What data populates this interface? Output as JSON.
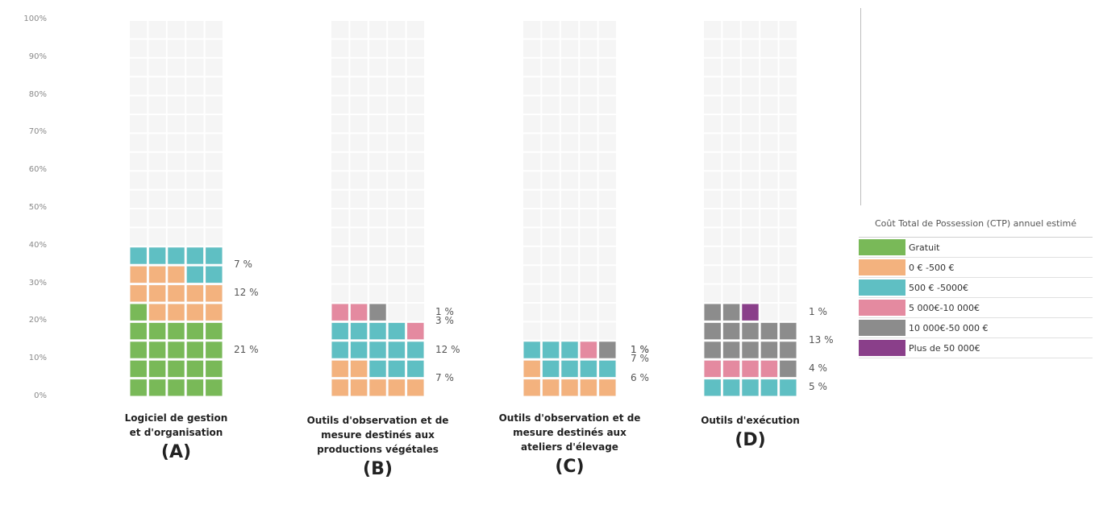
{
  "chart_data": {
    "type": "waffle",
    "y_ticks": [
      "100%",
      "90%",
      "80%",
      "70%",
      "60%",
      "50%",
      "40%",
      "30%",
      "20%",
      "10%",
      "0%"
    ],
    "ylim": [
      0,
      100
    ],
    "legend_title": "Coût Total de Possession (CTP) annuel estimé",
    "legend": [
      {
        "key": "gratuit",
        "label": "Gratuit",
        "color": "#79b958"
      },
      {
        "key": "c0_500",
        "label": "0 € -500 €",
        "color": "#f3b27e"
      },
      {
        "key": "c500_5000",
        "label": "500 € -5000€",
        "color": "#5fbfc3"
      },
      {
        "key": "c5000_10000",
        "label": "5 000€-10 000€",
        "color": "#e48aa0"
      },
      {
        "key": "c10000_50000",
        "label": "10 000€-50 000 €",
        "color": "#8c8c8c"
      },
      {
        "key": "plus_50000",
        "label": "Plus de 50 000€",
        "color": "#8a3f8a"
      }
    ],
    "categories": [
      {
        "label_lines": [
          "Logiciel de gestion",
          "et d'organisation"
        ],
        "letter": "(A)",
        "series": [
          {
            "key": "gratuit",
            "value": 21,
            "label": "21 %"
          },
          {
            "key": "c0_500",
            "value": 12,
            "label": "12 %"
          },
          {
            "key": "c500_5000",
            "value": 7,
            "label": "7 %"
          }
        ]
      },
      {
        "label_lines": [
          "Outils d'observation et de",
          "mesure destinés aux",
          "productions végétales"
        ],
        "letter": "(B)",
        "series": [
          {
            "key": "c0_500",
            "value": 7,
            "label": "7 %"
          },
          {
            "key": "c500_5000",
            "value": 12,
            "label": "12 %"
          },
          {
            "key": "c5000_10000",
            "value": 3,
            "label": "3 %"
          },
          {
            "key": "c10000_50000",
            "value": 1,
            "label": "1 %"
          }
        ]
      },
      {
        "label_lines": [
          "Outils d'observation et de",
          "mesure destinés aux",
          "ateliers d'élevage"
        ],
        "letter": "(C)",
        "series": [
          {
            "key": "c0_500",
            "value": 6,
            "label": "6 %"
          },
          {
            "key": "c500_5000",
            "value": 7,
            "label": "7 %"
          },
          {
            "key": "c5000_10000",
            "value": 1,
            "label": "1 %"
          },
          {
            "key": "c10000_50000",
            "value": 1,
            "label": "1 %"
          }
        ]
      },
      {
        "label_lines": [
          "Outils d'exécution"
        ],
        "letter": "(D)",
        "series": [
          {
            "key": "c500_5000",
            "value": 5,
            "label": "5 %"
          },
          {
            "key": "c5000_10000",
            "value": 4,
            "label": "4 %"
          },
          {
            "key": "c10000_50000",
            "value": 13,
            "label": "13 %"
          },
          {
            "key": "plus_50000",
            "value": 1,
            "label": "1 %"
          }
        ]
      }
    ]
  }
}
